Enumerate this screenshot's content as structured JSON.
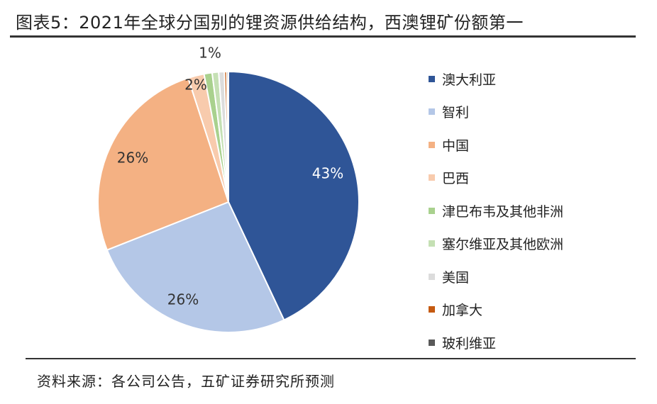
{
  "title": "图表5：2021年全球分国别的锂资源供给结构，西澳锂矿份额第一",
  "source": "资料来源：各公司公告，五矿证券研究所预测",
  "chart_data": {
    "type": "pie",
    "legend_position": "right",
    "slices": [
      {
        "label": "澳大利亚",
        "value": 43,
        "display": "43%",
        "color": "#2f5597"
      },
      {
        "label": "智利",
        "value": 26,
        "display": "26%",
        "color": "#b4c7e7"
      },
      {
        "label": "中国",
        "value": 26,
        "display": "26%",
        "color": "#f4b183"
      },
      {
        "label": "巴西",
        "value": 2,
        "display": "2%",
        "color": "#f8cbad"
      },
      {
        "label": "津巴布韦及其他非洲",
        "value": 1,
        "display": "1%",
        "color": "#a9d18e"
      },
      {
        "label": "塞尔维亚及其他欧洲",
        "value": 0.8,
        "display": "",
        "color": "#c5e0b4"
      },
      {
        "label": "美国",
        "value": 0.7,
        "display": "",
        "color": "#dcdcdc"
      },
      {
        "label": "加拿大",
        "value": 0.3,
        "display": "",
        "color": "#c55a11"
      },
      {
        "label": "玻利维亚",
        "value": 0.2,
        "display": "",
        "color": "#595959"
      }
    ]
  }
}
